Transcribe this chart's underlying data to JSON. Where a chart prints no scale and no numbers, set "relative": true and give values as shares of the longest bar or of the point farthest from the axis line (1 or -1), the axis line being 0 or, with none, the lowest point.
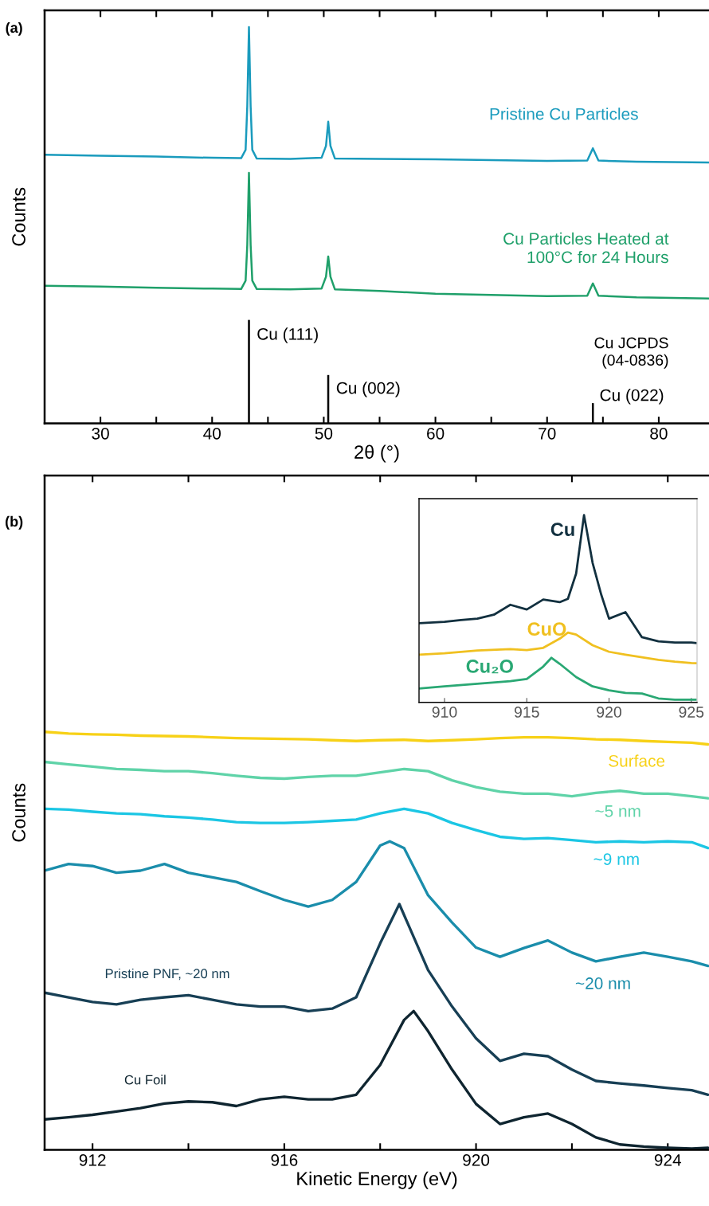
{
  "chart_data": [
    {
      "type": "line",
      "title": "(a)",
      "xlabel": "2θ (°)",
      "ylabel": "Counts",
      "relative": true,
      "xlim": [
        25,
        84.5
      ],
      "xticks": [
        30,
        {
          "value": 35,
          "label": null
        },
        40,
        {
          "value": 45,
          "label": null
        },
        50,
        {
          "value": 55,
          "label": null
        },
        60,
        {
          "value": 65,
          "label": null
        },
        70,
        {
          "value": 75,
          "label": null
        },
        80
      ],
      "series": [
        {
          "name": "Pristine Cu Particles",
          "color": "#1a9bbd",
          "x": [
            25,
            30,
            35,
            40,
            42.6,
            43.0,
            43.15,
            43.3,
            43.45,
            43.6,
            44,
            47,
            49.8,
            50.2,
            50.4,
            50.6,
            51,
            55,
            60,
            65,
            70,
            73.6,
            74.1,
            74.6,
            78,
            84.5
          ],
          "values": [
            0.678,
            0.675,
            0.673,
            0.67,
            0.669,
            0.69,
            0.8,
            1.0,
            0.8,
            0.69,
            0.668,
            0.667,
            0.67,
            0.7,
            0.761,
            0.7,
            0.668,
            0.667,
            0.666,
            0.664,
            0.662,
            0.663,
            0.694,
            0.663,
            0.66,
            0.658
          ]
        },
        {
          "name": "Cu Particles Heated at\n100°C for 24 Hours",
          "color": "#1fa06a",
          "x": [
            25,
            30,
            35,
            40,
            42.6,
            43.0,
            43.15,
            43.3,
            43.45,
            43.6,
            44,
            47,
            49.8,
            50.2,
            50.4,
            50.6,
            51,
            55,
            60,
            65,
            70,
            73.6,
            74.1,
            74.6,
            78,
            84.5
          ],
          "values": [
            0.347,
            0.345,
            0.342,
            0.34,
            0.339,
            0.36,
            0.45,
            0.632,
            0.45,
            0.36,
            0.339,
            0.338,
            0.34,
            0.37,
            0.421,
            0.37,
            0.338,
            0.334,
            0.327,
            0.324,
            0.321,
            0.322,
            0.353,
            0.322,
            0.318,
            0.315
          ]
        },
        {
          "name": "Cu JCPDS\n(04-0836)",
          "type": "bar",
          "color": "#000000",
          "x": [
            43.3,
            50.4,
            74.1
          ],
          "values": [
            0.261,
            0.122,
            0.051
          ]
        }
      ],
      "annotations": [
        {
          "text": "Cu (111)",
          "x": 43.3,
          "y": 0.261
        },
        {
          "text": "Cu (002)",
          "x": 50.4,
          "y": 0.122
        },
        {
          "text": "Cu (022)",
          "x": 74.1,
          "y": 0.051
        }
      ]
    },
    {
      "type": "line",
      "title": "(b)",
      "xlabel": "Kinetic Energy (eV)",
      "ylabel": "Counts",
      "relative": true,
      "xlim": [
        911,
        924.86
      ],
      "xticks": [
        912,
        {
          "value": 914,
          "label": null
        },
        916,
        {
          "value": 918,
          "label": null
        },
        920,
        {
          "value": 922,
          "label": null
        },
        924
      ],
      "series": [
        {
          "name": "Surface",
          "color": "#f7d117",
          "x": [
            911,
            911.5,
            912,
            912.5,
            913,
            913.5,
            914,
            914.5,
            915,
            915.5,
            916,
            916.5,
            917,
            917.5,
            918,
            918.5,
            919,
            919.5,
            920,
            920.5,
            921,
            921.5,
            922,
            922.5,
            923,
            923.5,
            924,
            924.5,
            924.84
          ],
          "values": [
            1.0,
            0.996,
            0.994,
            0.993,
            0.991,
            0.99,
            0.989,
            0.987,
            0.985,
            0.984,
            0.983,
            0.982,
            0.98,
            0.978,
            0.98,
            0.981,
            0.978,
            0.98,
            0.982,
            0.985,
            0.987,
            0.987,
            0.985,
            0.982,
            0.981,
            0.978,
            0.976,
            0.974,
            0.97
          ]
        },
        {
          "name": "~5 nm",
          "color": "#5fd3a8",
          "x": [
            911,
            911.5,
            912,
            912.5,
            913,
            913.5,
            914,
            914.5,
            915,
            915.5,
            916,
            916.5,
            917,
            917.5,
            918,
            918.5,
            919,
            919.5,
            920,
            920.5,
            921,
            921.5,
            922,
            922.5,
            923,
            923.5,
            924,
            924.5,
            924.84
          ],
          "values": [
            0.928,
            0.922,
            0.917,
            0.911,
            0.909,
            0.906,
            0.906,
            0.901,
            0.895,
            0.89,
            0.888,
            0.892,
            0.895,
            0.895,
            0.903,
            0.911,
            0.906,
            0.884,
            0.868,
            0.857,
            0.852,
            0.852,
            0.846,
            0.854,
            0.859,
            0.852,
            0.852,
            0.846,
            0.841
          ]
        },
        {
          "name": "~9 nm",
          "color": "#1bc6e4",
          "x": [
            911,
            911.5,
            912,
            912.5,
            913,
            913.5,
            914,
            914.5,
            915,
            915.5,
            916,
            916.5,
            917,
            917.5,
            918,
            918.5,
            919,
            919.5,
            920,
            920.5,
            921,
            921.5,
            922,
            922.5,
            923,
            923.5,
            924,
            924.5,
            924.84
          ],
          "values": [
            0.816,
            0.814,
            0.809,
            0.805,
            0.803,
            0.798,
            0.795,
            0.79,
            0.784,
            0.782,
            0.782,
            0.784,
            0.787,
            0.79,
            0.805,
            0.816,
            0.805,
            0.782,
            0.765,
            0.749,
            0.744,
            0.746,
            0.741,
            0.736,
            0.738,
            0.736,
            0.738,
            0.736,
            0.722
          ]
        },
        {
          "name": "~20 nm",
          "color": "#1a8dab",
          "x": [
            911,
            911.5,
            912,
            912.5,
            913,
            913.5,
            914,
            914.5,
            915,
            915.5,
            916,
            916.5,
            917,
            917.5,
            918,
            918.2,
            918.5,
            919,
            919.5,
            920,
            920.5,
            921,
            921.5,
            922,
            922.5,
            923,
            923.5,
            924,
            924.5,
            924.84
          ],
          "values": [
            0.668,
            0.684,
            0.679,
            0.663,
            0.668,
            0.684,
            0.663,
            0.652,
            0.641,
            0.619,
            0.598,
            0.582,
            0.598,
            0.641,
            0.728,
            0.738,
            0.722,
            0.609,
            0.544,
            0.484,
            0.462,
            0.483,
            0.501,
            0.472,
            0.451,
            0.462,
            0.472,
            0.462,
            0.451,
            0.44
          ]
        },
        {
          "name": "Pristine PNF, ~20 nm",
          "color": "#173f55",
          "x": [
            911,
            911.5,
            912,
            912.5,
            913,
            913.5,
            914,
            914.5,
            915,
            915.5,
            916,
            916.5,
            917,
            917.5,
            918,
            918.4,
            919,
            919.5,
            920,
            920.5,
            921,
            921.5,
            922,
            922.5,
            923,
            923.5,
            924,
            924.5,
            924.84
          ],
          "values": [
            0.376,
            0.365,
            0.354,
            0.348,
            0.359,
            0.365,
            0.37,
            0.359,
            0.348,
            0.343,
            0.343,
            0.332,
            0.338,
            0.365,
            0.494,
            0.588,
            0.43,
            0.343,
            0.267,
            0.213,
            0.23,
            0.224,
            0.192,
            0.165,
            0.159,
            0.154,
            0.148,
            0.143,
            0.132
          ]
        },
        {
          "name": "Cu Foil",
          "color": "#0f2530",
          "x": [
            911,
            911.5,
            912,
            912.5,
            913,
            913.5,
            914,
            914.5,
            915,
            915.5,
            916,
            916.5,
            917,
            917.5,
            918,
            918.5,
            918.7,
            919,
            919.5,
            920,
            920.5,
            921,
            921.5,
            922,
            922.5,
            923,
            923.5,
            924,
            924.5,
            924.84
          ],
          "values": [
            0.073,
            0.078,
            0.084,
            0.092,
            0.1,
            0.111,
            0.116,
            0.114,
            0.105,
            0.121,
            0.127,
            0.121,
            0.121,
            0.132,
            0.203,
            0.311,
            0.332,
            0.284,
            0.192,
            0.11,
            0.062,
            0.078,
            0.087,
            0.062,
            0.03,
            0.013,
            0.008,
            0.005,
            0.003,
            0.005
          ]
        }
      ]
    },
    {
      "type": "line",
      "relative": true,
      "xlim": [
        908.45,
        925.35
      ],
      "xticks": [
        910,
        915,
        920,
        925
      ],
      "series": [
        {
          "name": "Cu",
          "color": "#12303f",
          "x": [
            908.45,
            910,
            911,
            912,
            913,
            914,
            915,
            916,
            917,
            917.5,
            918,
            918.48,
            919,
            919.53,
            920,
            921,
            922,
            923,
            924,
            925,
            925.35
          ],
          "values": [
            0.423,
            0.43,
            0.44,
            0.447,
            0.468,
            0.521,
            0.496,
            0.549,
            0.535,
            0.553,
            0.688,
            1.0,
            0.745,
            0.574,
            0.447,
            0.482,
            0.348,
            0.326,
            0.319,
            0.319,
            0.316
          ]
        },
        {
          "name": "CuO",
          "color": "#f0c020",
          "x": [
            908.45,
            910,
            912,
            914,
            915,
            916,
            917,
            917.5,
            918,
            919,
            920,
            921,
            922,
            923,
            924,
            925,
            925.35
          ],
          "values": [
            0.255,
            0.262,
            0.277,
            0.284,
            0.279,
            0.291,
            0.34,
            0.373,
            0.362,
            0.305,
            0.27,
            0.255,
            0.241,
            0.227,
            0.217,
            0.21,
            0.209
          ]
        },
        {
          "name": "Cu₂O",
          "color": "#2aa874",
          "x": [
            908.45,
            910,
            912,
            914,
            915,
            916,
            916.5,
            917,
            918,
            919,
            920,
            921,
            922,
            923,
            924,
            925,
            925.35
          ],
          "values": [
            0.074,
            0.085,
            0.099,
            0.113,
            0.125,
            0.191,
            0.238,
            0.206,
            0.135,
            0.085,
            0.064,
            0.05,
            0.047,
            0.021,
            0.014,
            0.014,
            0.014
          ]
        }
      ]
    }
  ]
}
